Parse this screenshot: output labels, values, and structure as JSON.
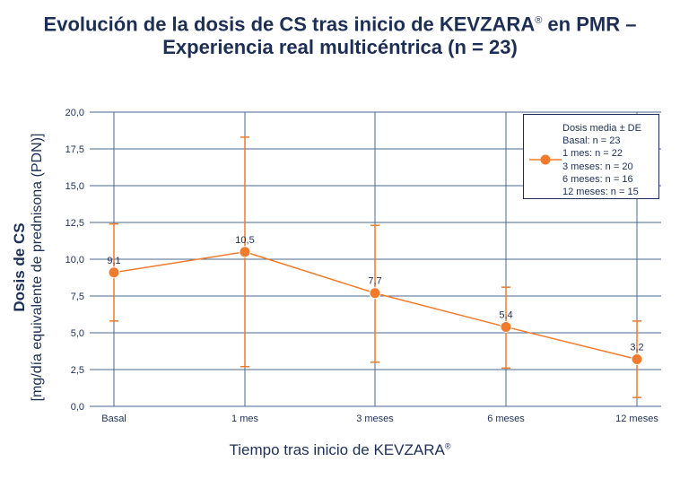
{
  "title": {
    "line1": "Evolución de la dosis de CS tras inicio de KEVZARA",
    "line1_sup": "®",
    "line1_end": " en PMR –",
    "line2": "Experiencia real multicéntrica (n = 23)"
  },
  "y_axis": {
    "label_main": "Dosis de CS",
    "label_sub": "[mg/día equivalente de prednisona (PDN)]"
  },
  "x_axis": {
    "label": "Tiempo tras inicio de KEVZARA",
    "label_sup": "®"
  },
  "legend": {
    "title": "Dosis media ± DE",
    "rows": [
      "Basal: n = 23",
      "1 mes: n = 22",
      "3 meses: n = 20",
      "6 meses: n = 16",
      "12 meses: n = 15"
    ]
  },
  "colors": {
    "series": "#f07b2c",
    "grid": "#4a6a8c",
    "text": "#1d2f55"
  },
  "chart_data": {
    "type": "line",
    "categories": [
      "Basal",
      "1 mes",
      "3 meses",
      "6 meses",
      "12 meses"
    ],
    "values": [
      9.1,
      10.5,
      7.7,
      5.4,
      3.2
    ],
    "value_labels": [
      "9,1",
      "10,5",
      "7,7",
      "5,4",
      "3,2"
    ],
    "error_lower": [
      5.8,
      2.7,
      3.0,
      2.6,
      0.6
    ],
    "error_upper": [
      12.4,
      18.3,
      12.3,
      8.1,
      5.8
    ],
    "ylim": [
      0,
      20
    ],
    "y_ticks": [
      0,
      2.5,
      5,
      7.5,
      10,
      12.5,
      15,
      17.5,
      20
    ],
    "y_tick_labels": [
      "0,0",
      "2,5",
      "5,0",
      "7,5",
      "10,0",
      "12,5",
      "15,0",
      "17,5",
      "20,0"
    ],
    "grid": true,
    "legend_position": "top-right"
  }
}
